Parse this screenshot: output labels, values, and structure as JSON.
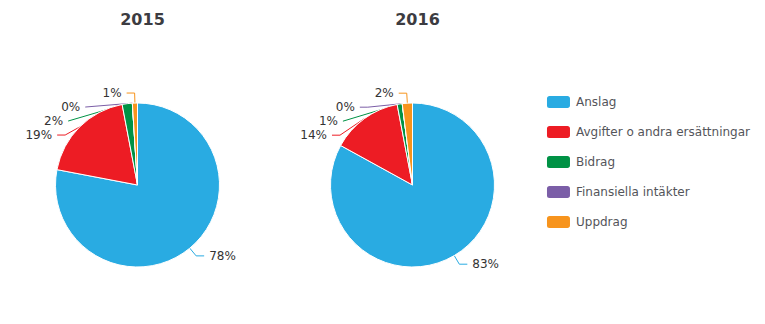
{
  "chart_data": [
    {
      "type": "pie",
      "title": "2015",
      "categories": [
        "Anslag",
        "Avgifter o andra ersättningar",
        "Bidrag",
        "Finansiella intäkter",
        "Uppdrag"
      ],
      "values": [
        78,
        19,
        2,
        0,
        1
      ],
      "value_labels": [
        "78%",
        "19%",
        "2%",
        "0%",
        "1%"
      ],
      "colors": [
        "#29ABE2",
        "#ED1C24",
        "#009245",
        "#7B5EA7",
        "#F7941D"
      ],
      "data_labels": true,
      "legend": "right"
    },
    {
      "type": "pie",
      "title": "2016",
      "categories": [
        "Anslag",
        "Avgifter o andra ersättningar",
        "Bidrag",
        "Finansiella intäkter",
        "Uppdrag"
      ],
      "values": [
        83,
        14,
        1,
        0,
        2
      ],
      "value_labels": [
        "83%",
        "14%",
        "1%",
        "0%",
        "2%"
      ],
      "colors": [
        "#29ABE2",
        "#ED1C24",
        "#009245",
        "#7B5EA7",
        "#F7941D"
      ],
      "data_labels": true,
      "legend": "right"
    }
  ]
}
